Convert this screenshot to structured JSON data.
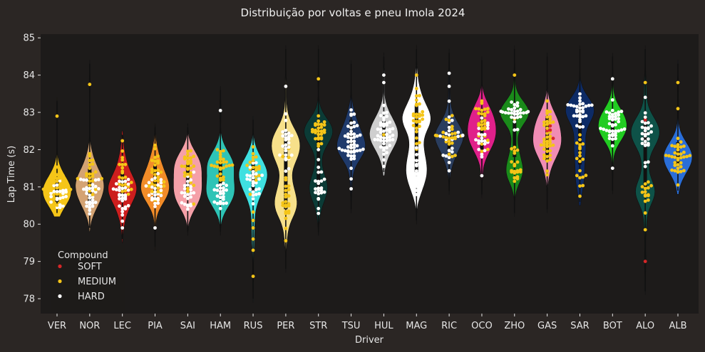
{
  "chart_data": {
    "type": "violin+swarm",
    "title": "Distribuição por voltas e pneu Imola 2024",
    "xlabel": "Driver",
    "ylabel": "Lap Time (s)",
    "ylim": [
      77.6,
      85.1
    ],
    "yticks": [
      78,
      79,
      80,
      81,
      82,
      83,
      84,
      85
    ],
    "colors": {
      "figure_bg": "#2b2624",
      "axes_bg": "#1d1b1a",
      "text": "#e6e6e6",
      "whisker": "#111111"
    },
    "legend": {
      "title": "Compound",
      "placement": "lower-left",
      "entries": [
        {
          "label": "SOFT",
          "color": "#d62728"
        },
        {
          "label": "MEDIUM",
          "color": "#f5c518"
        },
        {
          "label": "HARD",
          "color": "#ffffff"
        }
      ]
    },
    "drivers": [
      {
        "name": "VER",
        "color": "#f5c518",
        "range": [
          80.3,
          83.3
        ],
        "q1": 80.6,
        "q3": 81.2,
        "median": 80.8,
        "clusters": [
          {
            "compound": "HARD",
            "center": 80.8,
            "spread": 0.35,
            "count": 22
          },
          {
            "compound": "MEDIUM",
            "center": 81.0,
            "spread": 0.35,
            "count": 30
          }
        ],
        "outliers": [
          {
            "compound": "MEDIUM",
            "y": 82.9
          }
        ]
      },
      {
        "name": "NOR",
        "color": "#d4a373",
        "range": [
          79.9,
          84.3
        ],
        "q1": 80.6,
        "q3": 81.5,
        "median": 80.9,
        "clusters": [
          {
            "compound": "HARD",
            "center": 80.8,
            "spread": 0.35,
            "count": 30
          },
          {
            "compound": "MEDIUM",
            "center": 81.4,
            "spread": 0.4,
            "count": 22
          }
        ],
        "outliers": [
          {
            "compound": "MEDIUM",
            "y": 83.75
          }
        ]
      },
      {
        "name": "LEC",
        "color": "#cc1e1e",
        "range": [
          79.6,
          82.4
        ],
        "q1": 80.6,
        "q3": 81.4,
        "median": 80.9,
        "clusters": [
          {
            "compound": "HARD",
            "center": 80.7,
            "spread": 0.4,
            "count": 30
          },
          {
            "compound": "MEDIUM",
            "center": 81.3,
            "spread": 0.5,
            "count": 22
          }
        ],
        "outliers": [
          {
            "compound": "HARD",
            "y": 79.9
          }
        ]
      },
      {
        "name": "PIA",
        "color": "#f28c28",
        "range": [
          79.4,
          82.6
        ],
        "q1": 80.7,
        "q3": 81.6,
        "median": 81.0,
        "clusters": [
          {
            "compound": "HARD",
            "center": 80.8,
            "spread": 0.35,
            "count": 26
          },
          {
            "compound": "MEDIUM",
            "center": 81.3,
            "spread": 0.5,
            "count": 28
          }
        ],
        "outliers": [
          {
            "compound": "HARD",
            "y": 79.9
          }
        ]
      },
      {
        "name": "SAI",
        "color": "#f5a0a8",
        "range": [
          79.8,
          82.6
        ],
        "q1": 80.8,
        "q3": 81.6,
        "median": 81.1,
        "clusters": [
          {
            "compound": "HARD",
            "center": 80.9,
            "spread": 0.35,
            "count": 24
          },
          {
            "compound": "MEDIUM",
            "center": 81.4,
            "spread": 0.5,
            "count": 28
          }
        ],
        "outliers": []
      },
      {
        "name": "HAM",
        "color": "#2ec4b6",
        "range": [
          79.8,
          83.6
        ],
        "q1": 80.8,
        "q3": 81.7,
        "median": 81.2,
        "clusters": [
          {
            "compound": "HARD",
            "center": 80.8,
            "spread": 0.3,
            "count": 24
          },
          {
            "compound": "MEDIUM",
            "center": 81.6,
            "spread": 0.45,
            "count": 26
          }
        ],
        "outliers": [
          {
            "compound": "HARD",
            "y": 83.05
          }
        ]
      },
      {
        "name": "RUS",
        "color": "#3fe0e0",
        "range": [
          78.0,
          82.8
        ],
        "q1": 80.9,
        "q3": 81.7,
        "median": 81.2,
        "clusters": [
          {
            "compound": "HARD",
            "center": 81.2,
            "spread": 0.4,
            "count": 26
          },
          {
            "compound": "MEDIUM",
            "center": 81.5,
            "spread": 0.45,
            "count": 18
          }
        ],
        "outliers": [
          {
            "compound": "MEDIUM",
            "y": 80.1
          },
          {
            "compound": "MEDIUM",
            "y": 79.9
          },
          {
            "compound": "MEDIUM",
            "y": 79.6
          },
          {
            "compound": "MEDIUM",
            "y": 79.3
          },
          {
            "compound": "MEDIUM",
            "y": 78.6
          }
        ]
      },
      {
        "name": "PER",
        "color": "#f7e08a",
        "range": [
          78.8,
          84.7
        ],
        "q1": 80.4,
        "q3": 82.5,
        "median": 81.3,
        "clusters": [
          {
            "compound": "HARD",
            "center": 82.2,
            "spread": 0.45,
            "count": 26
          },
          {
            "compound": "MEDIUM",
            "center": 80.6,
            "spread": 0.7,
            "count": 26
          }
        ],
        "outliers": [
          {
            "compound": "HARD",
            "y": 83.7
          }
        ]
      },
      {
        "name": "STR",
        "color": "#0b3b36",
        "range": [
          79.8,
          84.7
        ],
        "q1": 80.8,
        "q3": 82.7,
        "median": 82.4,
        "clusters": [
          {
            "compound": "MEDIUM",
            "center": 82.5,
            "spread": 0.3,
            "count": 28
          },
          {
            "compound": "HARD",
            "center": 80.9,
            "spread": 0.4,
            "count": 22
          }
        ],
        "outliers": [
          {
            "compound": "MEDIUM",
            "y": 83.9
          },
          {
            "compound": "HARD",
            "y": 82.0
          }
        ]
      },
      {
        "name": "TSU",
        "color": "#1f3a6b",
        "range": [
          80.4,
          84.3
        ],
        "q1": 81.9,
        "q3": 82.8,
        "median": 82.3,
        "clusters": [
          {
            "compound": "HARD",
            "center": 82.3,
            "spread": 0.5,
            "count": 48
          }
        ],
        "outliers": [
          {
            "compound": "HARD",
            "y": 80.95
          }
        ]
      },
      {
        "name": "HUL",
        "color": "#cfcfcf",
        "range": [
          81.4,
          84.5
        ],
        "q1": 82.1,
        "q3": 82.8,
        "median": 82.4,
        "clusters": [
          {
            "compound": "HARD",
            "center": 82.4,
            "spread": 0.45,
            "count": 46
          }
        ],
        "outliers": [
          {
            "compound": "HARD",
            "y": 83.8
          },
          {
            "compound": "HARD",
            "y": 84.0
          },
          {
            "compound": "MEDIUM",
            "y": 82.4
          }
        ]
      },
      {
        "name": "MAG",
        "color": "#ffffff",
        "range": [
          80.1,
          84.7
        ],
        "q1": 81.4,
        "q3": 83.2,
        "median": 82.5,
        "clusters": [
          {
            "compound": "MEDIUM",
            "center": 82.9,
            "spread": 0.45,
            "count": 30
          },
          {
            "compound": "HARD",
            "center": 81.4,
            "spread": 0.45,
            "count": 22
          }
        ],
        "outliers": [
          {
            "compound": "MEDIUM",
            "y": 84.0
          }
        ]
      },
      {
        "name": "RIC",
        "color": "#2a3d5e",
        "range": [
          80.9,
          84.6
        ],
        "q1": 82.0,
        "q3": 82.6,
        "median": 82.2,
        "clusters": [
          {
            "compound": "MEDIUM",
            "center": 82.3,
            "spread": 0.35,
            "count": 24
          },
          {
            "compound": "HARD",
            "center": 82.2,
            "spread": 0.4,
            "count": 22
          }
        ],
        "outliers": [
          {
            "compound": "HARD",
            "y": 83.7
          },
          {
            "compound": "HARD",
            "y": 84.05
          },
          {
            "compound": "HARD",
            "y": 83.3
          }
        ]
      },
      {
        "name": "OCO",
        "color": "#e0208a",
        "range": [
          80.8,
          84.4
        ],
        "q1": 82.0,
        "q3": 83.1,
        "median": 82.6,
        "clusters": [
          {
            "compound": "MEDIUM",
            "center": 82.7,
            "spread": 0.5,
            "count": 28
          },
          {
            "compound": "HARD",
            "center": 82.4,
            "spread": 0.5,
            "count": 20
          }
        ],
        "outliers": [
          {
            "compound": "HARD",
            "y": 81.3
          }
        ]
      },
      {
        "name": "ZHO",
        "color": "#1a8a1a",
        "range": [
          80.3,
          84.7
        ],
        "q1": 81.8,
        "q3": 83.1,
        "median": 82.8,
        "clusters": [
          {
            "compound": "HARD",
            "center": 83.0,
            "spread": 0.3,
            "count": 28
          },
          {
            "compound": "MEDIUM",
            "center": 81.6,
            "spread": 0.5,
            "count": 22
          }
        ],
        "outliers": [
          {
            "compound": "MEDIUM",
            "y": 84.0
          }
        ]
      },
      {
        "name": "GAS",
        "color": "#f08cb4",
        "range": [
          80.4,
          84.5
        ],
        "q1": 81.7,
        "q3": 82.9,
        "median": 82.3,
        "clusters": [
          {
            "compound": "MEDIUM",
            "center": 82.2,
            "spread": 0.7,
            "count": 40
          },
          {
            "compound": "SOFT",
            "center": 82.4,
            "spread": 0.2,
            "count": 4
          }
        ],
        "outliers": []
      },
      {
        "name": "SAR",
        "color": "#0d2b66",
        "range": [
          80.6,
          84.7
        ],
        "q1": 81.6,
        "q3": 83.2,
        "median": 82.9,
        "clusters": [
          {
            "compound": "HARD",
            "center": 83.0,
            "spread": 0.35,
            "count": 30
          },
          {
            "compound": "MEDIUM",
            "center": 81.6,
            "spread": 0.5,
            "count": 20
          }
        ],
        "outliers": []
      },
      {
        "name": "BOT",
        "color": "#22cc22",
        "range": [
          80.9,
          84.5
        ],
        "q1": 82.1,
        "q3": 82.9,
        "median": 82.6,
        "clusters": [
          {
            "compound": "HARD",
            "center": 82.6,
            "spread": 0.4,
            "count": 40
          }
        ],
        "outliers": [
          {
            "compound": "HARD",
            "y": 83.9
          },
          {
            "compound": "HARD",
            "y": 81.5
          }
        ]
      },
      {
        "name": "ALO",
        "color": "#0e5248",
        "range": [
          78.2,
          84.7
        ],
        "q1": 81.0,
        "q3": 82.9,
        "median": 82.6,
        "clusters": [
          {
            "compound": "HARD",
            "center": 82.5,
            "spread": 0.5,
            "count": 28
          },
          {
            "compound": "MEDIUM",
            "center": 81.0,
            "spread": 0.3,
            "count": 14
          }
        ],
        "outliers": [
          {
            "compound": "SOFT",
            "y": 79.0
          },
          {
            "compound": "SOFT",
            "y": 82.8
          },
          {
            "compound": "MEDIUM",
            "y": 79.85
          },
          {
            "compound": "MEDIUM",
            "y": 80.3
          },
          {
            "compound": "MEDIUM",
            "y": 83.8
          }
        ]
      },
      {
        "name": "ALB",
        "color": "#2a6ed8",
        "range": [
          80.9,
          84.3
        ],
        "q1": 81.6,
        "q3": 82.2,
        "median": 81.8,
        "clusters": [
          {
            "compound": "MEDIUM",
            "center": 81.8,
            "spread": 0.35,
            "count": 36
          }
        ],
        "outliers": [
          {
            "compound": "MEDIUM",
            "y": 83.1
          },
          {
            "compound": "MEDIUM",
            "y": 83.8
          }
        ]
      }
    ]
  }
}
